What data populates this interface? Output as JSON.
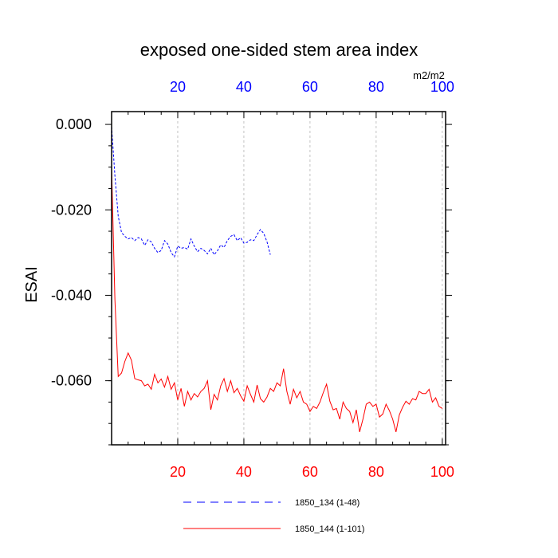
{
  "chart_data": {
    "type": "line",
    "title": "exposed one-sided stem area index",
    "ylabel": "ESAI",
    "units_label": "m2/m2",
    "ylim": [
      -0.075,
      0.003
    ],
    "y_ticks": [
      0.0,
      -0.02,
      -0.04,
      -0.06
    ],
    "y_tick_labels": [
      "0.000",
      "-0.020",
      "-0.040",
      "-0.060"
    ],
    "bottom_axis": {
      "xlim": [
        0,
        101
      ],
      "ticks": [
        20,
        40,
        60,
        80,
        100
      ],
      "tick_labels": [
        "20",
        "40",
        "60",
        "80",
        "100"
      ],
      "color": "#ff0000"
    },
    "top_axis": {
      "xlim": [
        0,
        101
      ],
      "ticks": [
        20,
        40,
        60,
        80,
        100
      ],
      "tick_labels": [
        "20",
        "40",
        "60",
        "80",
        "100"
      ],
      "color": "#0000ff"
    },
    "grid": "vertical dashed at x ticks",
    "legend_placement": "bottom-center",
    "series": [
      {
        "name": "1850_134 (1-48)",
        "color": "#0000ff",
        "dash": "dashed",
        "x_start": 0,
        "values": [
          -0.0005,
          -0.012,
          -0.0215,
          -0.0253,
          -0.0262,
          -0.0268,
          -0.0265,
          -0.0272,
          -0.0265,
          -0.0268,
          -0.0283,
          -0.027,
          -0.0275,
          -0.029,
          -0.03,
          -0.0295,
          -0.0272,
          -0.028,
          -0.03,
          -0.031,
          -0.0285,
          -0.029,
          -0.0288,
          -0.0292,
          -0.0268,
          -0.0285,
          -0.0298,
          -0.029,
          -0.0295,
          -0.0303,
          -0.029,
          -0.0305,
          -0.0296,
          -0.0282,
          -0.0288,
          -0.0272,
          -0.0262,
          -0.0258,
          -0.0272,
          -0.0265,
          -0.0278,
          -0.0276,
          -0.027,
          -0.0272,
          -0.0258,
          -0.0246,
          -0.0255,
          -0.0275,
          -0.0305
        ]
      },
      {
        "name": "1850_144 (1-101)",
        "color": "#ff0000",
        "dash": "solid",
        "x_start": 0,
        "values": [
          -0.01,
          -0.041,
          -0.059,
          -0.0582,
          -0.0555,
          -0.0535,
          -0.0552,
          -0.0595,
          -0.0598,
          -0.06,
          -0.0612,
          -0.0608,
          -0.062,
          -0.0585,
          -0.0605,
          -0.0596,
          -0.0615,
          -0.059,
          -0.062,
          -0.0605,
          -0.0645,
          -0.0618,
          -0.066,
          -0.0625,
          -0.0645,
          -0.063,
          -0.0638,
          -0.0625,
          -0.0618,
          -0.06,
          -0.0668,
          -0.0632,
          -0.0645,
          -0.0612,
          -0.0595,
          -0.0625,
          -0.06,
          -0.0628,
          -0.0618,
          -0.0635,
          -0.0648,
          -0.0612,
          -0.0632,
          -0.065,
          -0.061,
          -0.0642,
          -0.065,
          -0.0638,
          -0.0618,
          -0.0625,
          -0.0605,
          -0.0612,
          -0.0572,
          -0.0625,
          -0.0655,
          -0.062,
          -0.064,
          -0.0625,
          -0.065,
          -0.0655,
          -0.0672,
          -0.066,
          -0.0665,
          -0.065,
          -0.0628,
          -0.0608,
          -0.0648,
          -0.0668,
          -0.0665,
          -0.069,
          -0.065,
          -0.0665,
          -0.0672,
          -0.0698,
          -0.0668,
          -0.072,
          -0.069,
          -0.0655,
          -0.065,
          -0.066,
          -0.0655,
          -0.0685,
          -0.0678,
          -0.0655,
          -0.067,
          -0.069,
          -0.072,
          -0.068,
          -0.0662,
          -0.0648,
          -0.0655,
          -0.0642,
          -0.0645,
          -0.0625,
          -0.063,
          -0.063,
          -0.062,
          -0.065,
          -0.064,
          -0.066,
          -0.0665
        ]
      }
    ]
  }
}
